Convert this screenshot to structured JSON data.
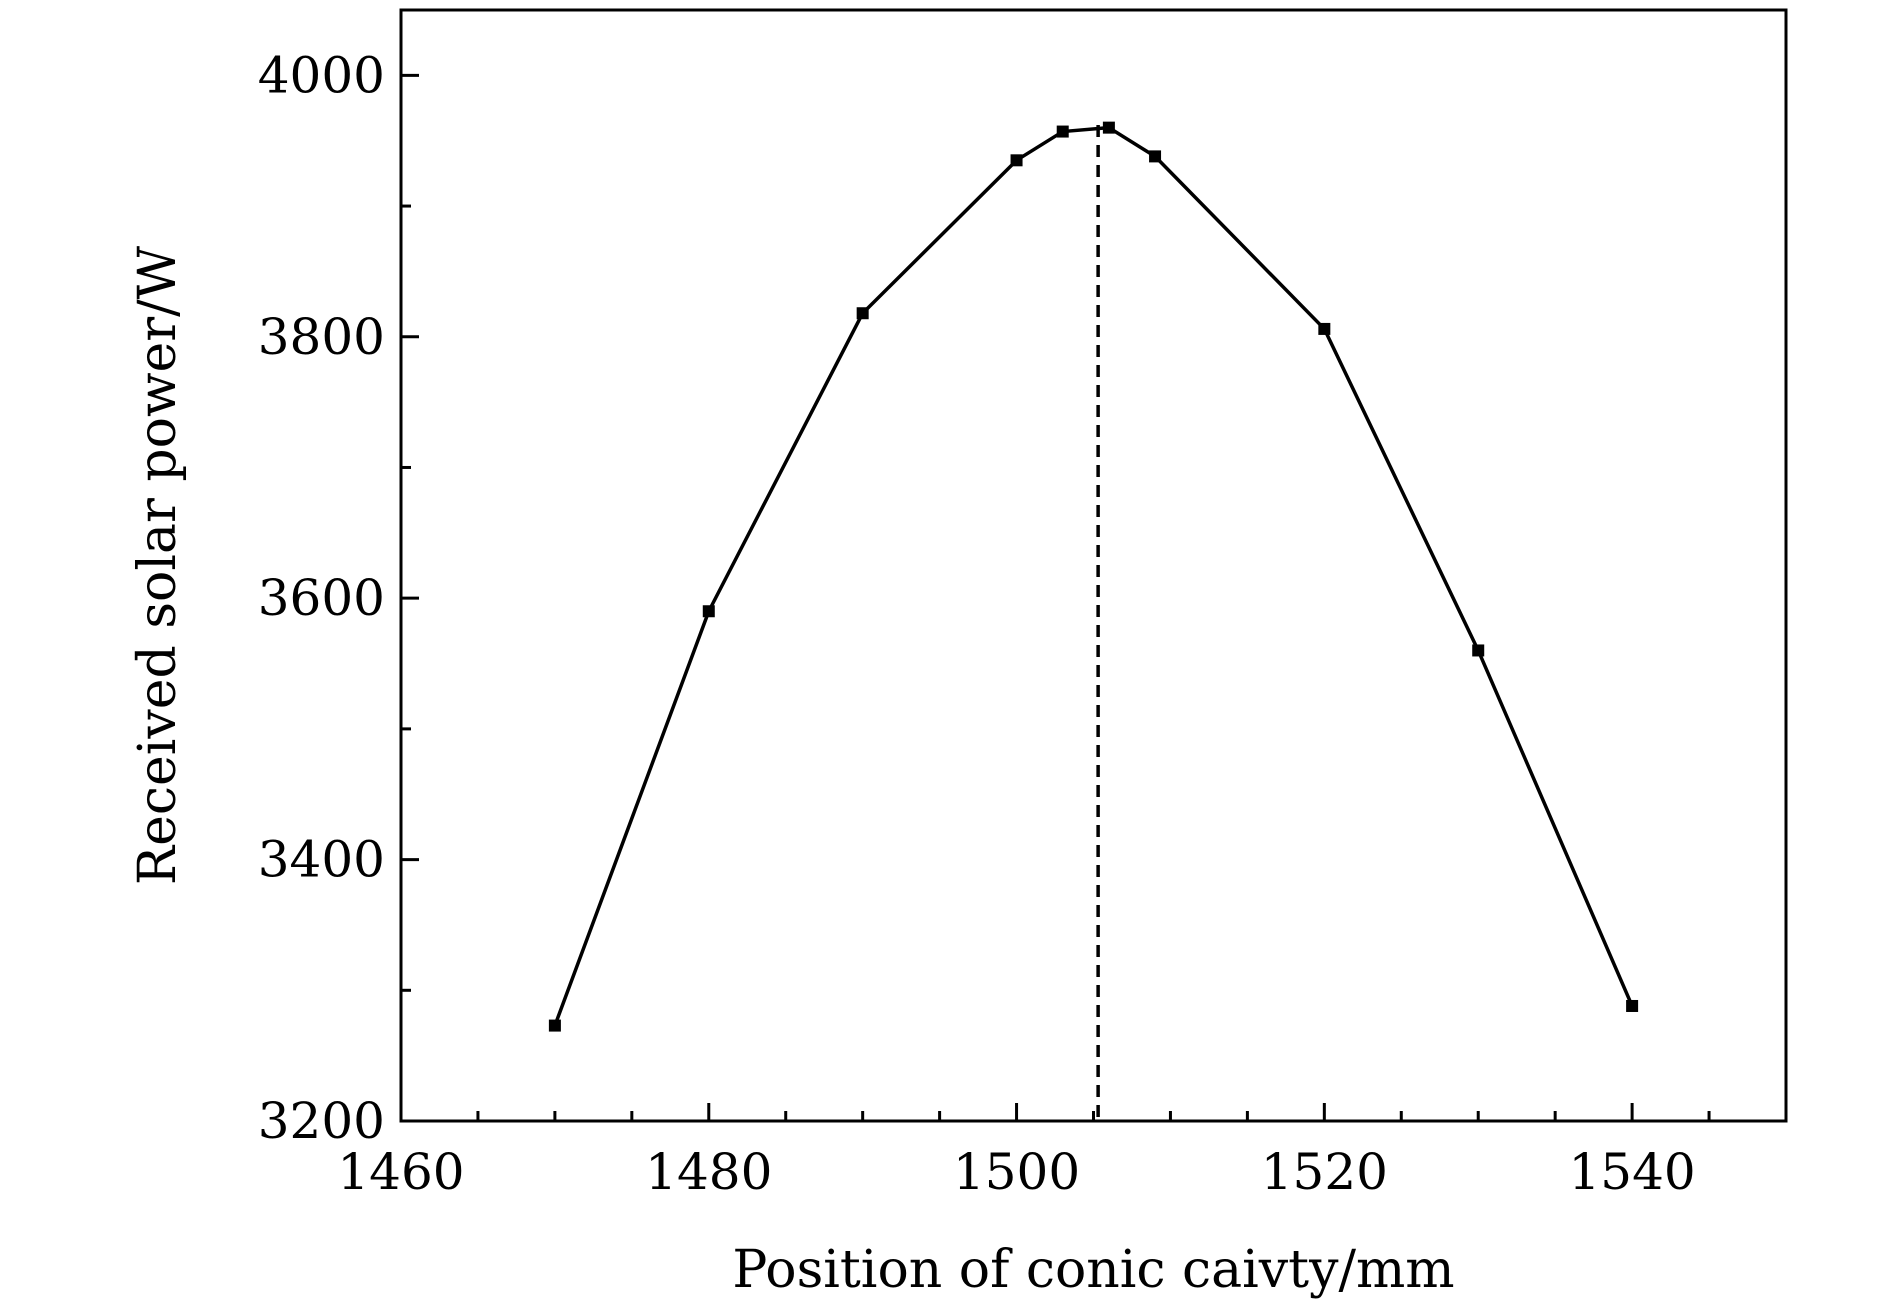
{
  "chart_data": {
    "type": "line",
    "xlabel": "Position of conic caivty/mm",
    "ylabel": "Received solar power/W",
    "xlim": [
      1460,
      1550
    ],
    "ylim": [
      3200,
      4050
    ],
    "x_ticks": [
      1460,
      1480,
      1500,
      1520,
      1540
    ],
    "x_minor_step": 5,
    "y_ticks": [
      3200,
      3400,
      3600,
      3800,
      4000
    ],
    "y_minor_step": 100,
    "grid": false,
    "series": [
      {
        "x": [
          1470,
          1480,
          1490,
          1500,
          1503,
          1506,
          1509,
          1520,
          1530,
          1540
        ],
        "y": [
          3273,
          3590,
          3818,
          3935,
          3957,
          3960,
          3938,
          3806,
          3560,
          3288
        ],
        "color": "#000000",
        "marker": "square"
      }
    ],
    "reference_line": {
      "x": 1505.3,
      "style": "dashed",
      "color": "#000000"
    }
  }
}
